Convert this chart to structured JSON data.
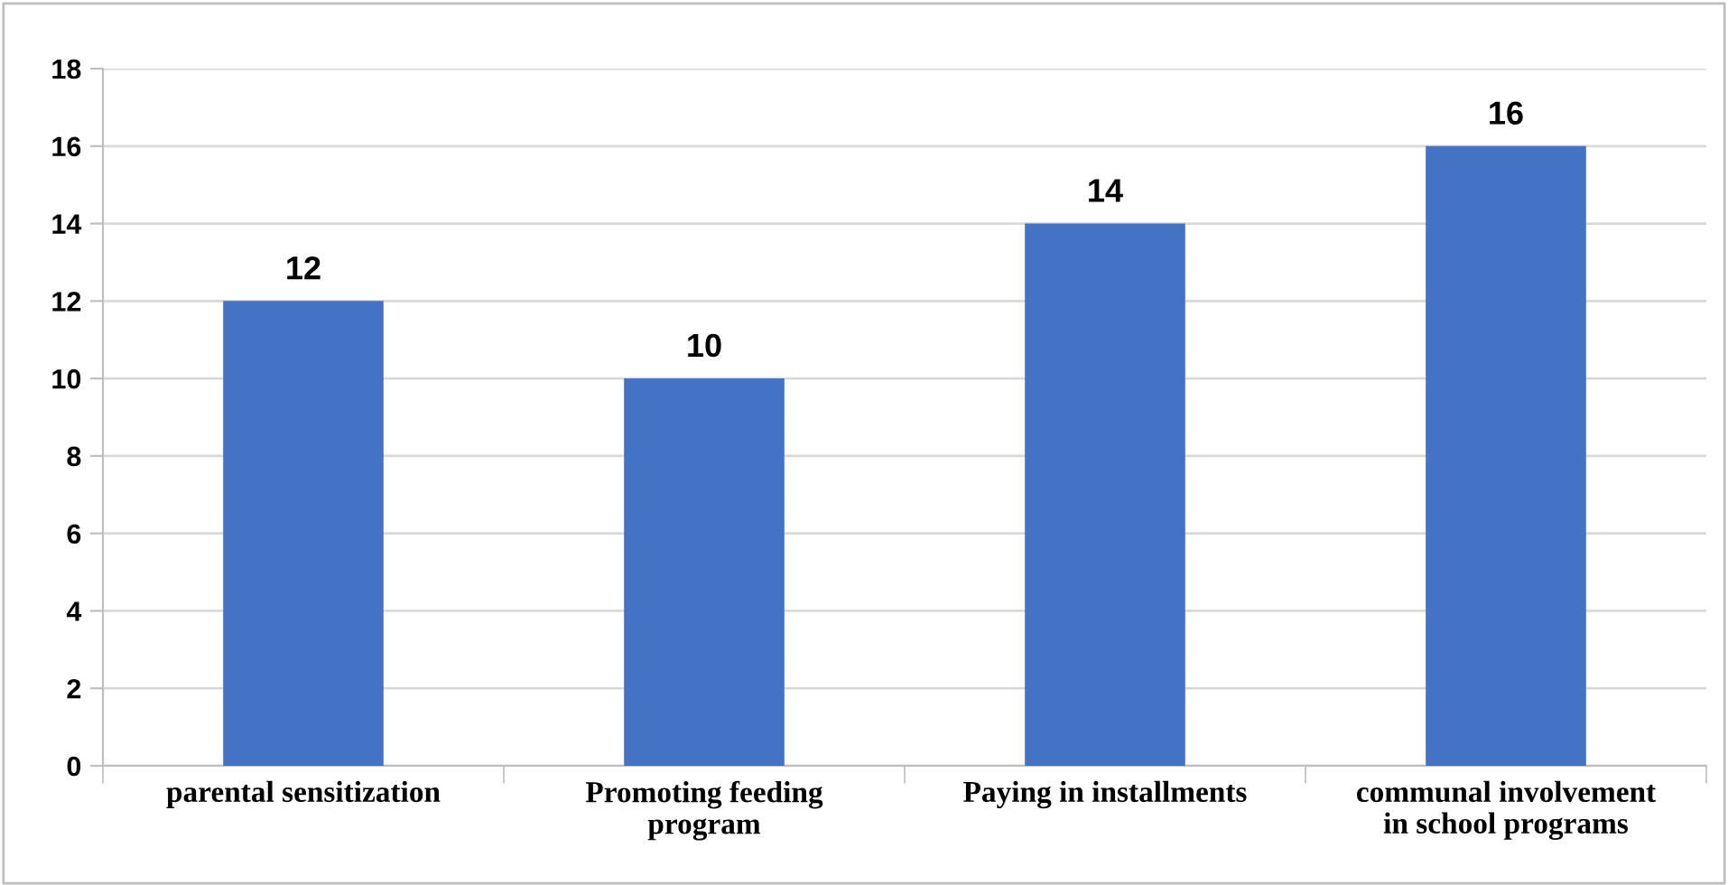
{
  "chart_data": {
    "type": "bar",
    "categories": [
      "parental sensitization",
      "Promoting feeding\nprogram",
      "Paying in installments",
      "communal involvement\nin school programs"
    ],
    "values": [
      12,
      10,
      14,
      16
    ],
    "color": "#4472c4",
    "ylim": [
      0,
      18
    ],
    "yticks": [
      0,
      2,
      4,
      6,
      8,
      10,
      12,
      14,
      16,
      18
    ],
    "grid": "y",
    "data_labels": true
  }
}
